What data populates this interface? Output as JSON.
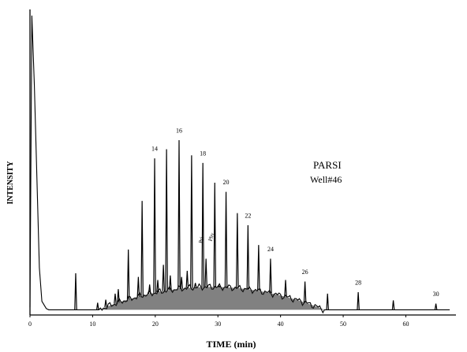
{
  "chart_data": {
    "type": "line",
    "title": "",
    "xlabel": "TIME (min)",
    "ylabel": "INTENSITY",
    "xlim": [
      0,
      68
    ],
    "ylim": [
      0,
      100
    ],
    "grid": false,
    "x_ticks": [
      "0",
      "10",
      "20",
      "30",
      "40",
      "50",
      "60"
    ],
    "x_tick_values": [
      0,
      10,
      20,
      30,
      40,
      50,
      60
    ],
    "legend": {
      "lines": [
        "PARSI",
        "Well#46"
      ],
      "placement": "middle-right"
    },
    "solvent_peak": {
      "x": 0.3,
      "y": 98
    },
    "hump": {
      "start": 11,
      "peak_x": 29,
      "peak_y": 7.5,
      "end": 47
    },
    "peaks": [
      {
        "x": 7.3,
        "y": 13.2
      },
      {
        "x": 10.8,
        "y": 3.5
      },
      {
        "x": 12.1,
        "y": 4.5
      },
      {
        "x": 13.6,
        "y": 6.5
      },
      {
        "x": 14.1,
        "y": 8.0
      },
      {
        "x": 15.7,
        "y": 21.0
      },
      {
        "x": 17.3,
        "y": 12.0
      },
      {
        "x": 17.9,
        "y": 37.0
      },
      {
        "x": 19.1,
        "y": 9.5
      },
      {
        "x": 19.9,
        "y": 51.0
      },
      {
        "x": 20.4,
        "y": 11.0
      },
      {
        "x": 21.3,
        "y": 16.0
      },
      {
        "x": 21.8,
        "y": 54.0
      },
      {
        "x": 22.4,
        "y": 12.5
      },
      {
        "x": 23.8,
        "y": 57.0
      },
      {
        "x": 24.2,
        "y": 12.0
      },
      {
        "x": 25.1,
        "y": 14.0
      },
      {
        "x": 25.8,
        "y": 52.0
      },
      {
        "x": 26.4,
        "y": 10.0
      },
      {
        "x": 27.6,
        "y": 49.5
      },
      {
        "x": 28.1,
        "y": 18.0
      },
      {
        "x": 29.5,
        "y": 43.0
      },
      {
        "x": 30.2,
        "y": 9.0
      },
      {
        "x": 31.3,
        "y": 40.0
      },
      {
        "x": 33.1,
        "y": 33.0
      },
      {
        "x": 34.8,
        "y": 29.0
      },
      {
        "x": 36.5,
        "y": 22.5
      },
      {
        "x": 38.4,
        "y": 18.0
      },
      {
        "x": 40.8,
        "y": 11.0
      },
      {
        "x": 43.9,
        "y": 10.5
      },
      {
        "x": 47.5,
        "y": 6.5
      },
      {
        "x": 52.4,
        "y": 7.0
      },
      {
        "x": 58.0,
        "y": 4.3
      },
      {
        "x": 64.8,
        "y": 3.2
      }
    ],
    "annotations": [
      {
        "text": "14",
        "x": 19.9,
        "y": 53.5
      },
      {
        "text": "16",
        "x": 23.8,
        "y": 59.5
      },
      {
        "text": "18",
        "x": 27.6,
        "y": 52.0
      },
      {
        "text": "20",
        "x": 31.3,
        "y": 42.5
      },
      {
        "text": "22",
        "x": 34.8,
        "y": 31.5
      },
      {
        "text": "24",
        "x": 38.4,
        "y": 20.5
      },
      {
        "text": "26",
        "x": 43.9,
        "y": 13.0
      },
      {
        "text": "28",
        "x": 52.4,
        "y": 9.5
      },
      {
        "text": "30",
        "x": 64.8,
        "y": 5.7
      },
      {
        "text": "Pri",
        "x": 27.6,
        "y": 24.0,
        "rotate": -75
      },
      {
        "text": "Phy",
        "x": 29.2,
        "y": 25.0,
        "rotate": -75
      }
    ]
  }
}
